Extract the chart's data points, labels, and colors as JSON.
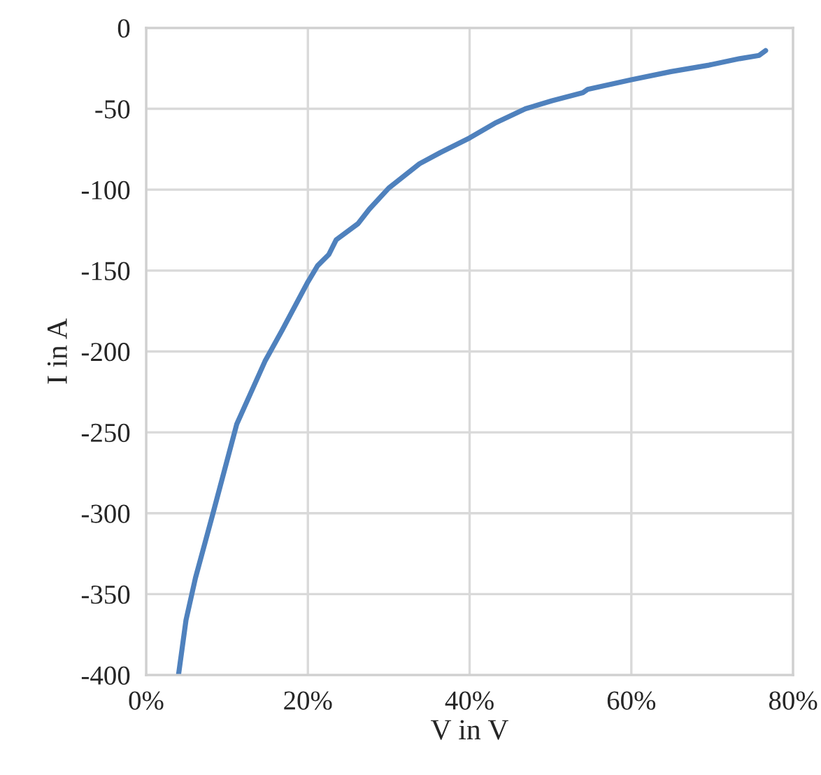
{
  "chart_data": {
    "type": "line",
    "xlabel": "V in V",
    "ylabel": "I in A",
    "series": [
      {
        "color": "#4f81bd",
        "x": [
          4.0,
          4.93,
          6.1,
          8.27,
          11.2,
          14.7,
          16.8,
          20.0,
          21.2,
          22.6,
          23.5,
          26.2,
          27.6,
          30.0,
          33.8,
          36.4,
          40.0,
          43.1,
          46.9,
          50.2,
          54.0,
          54.6,
          60.0,
          64.9,
          69.6,
          73.4,
          75.8,
          76.6
        ],
        "values": [
          -400,
          -366,
          -340,
          -300,
          -245,
          -206,
          -187,
          -157,
          -147,
          -140,
          -131,
          -121,
          -112,
          -99,
          -84,
          -77,
          -68,
          -59,
          -50,
          -45,
          -40,
          -38,
          -32,
          -27,
          -23,
          -19,
          -17,
          -14
        ]
      }
    ],
    "xlim": [
      0,
      80
    ],
    "xticks": [
      {
        "value": 0,
        "label": "0%"
      },
      {
        "value": 20,
        "label": "20%"
      },
      {
        "value": 40,
        "label": "40%"
      },
      {
        "value": 60,
        "label": "60%"
      },
      {
        "value": 80,
        "label": "80%"
      }
    ],
    "ylim": [
      -400,
      0
    ],
    "yticks": [
      -400,
      -350,
      -300,
      -250,
      -200,
      -150,
      -100,
      -50,
      0
    ],
    "grid": true,
    "marker": "none",
    "line_style": "solid",
    "legend": false
  }
}
